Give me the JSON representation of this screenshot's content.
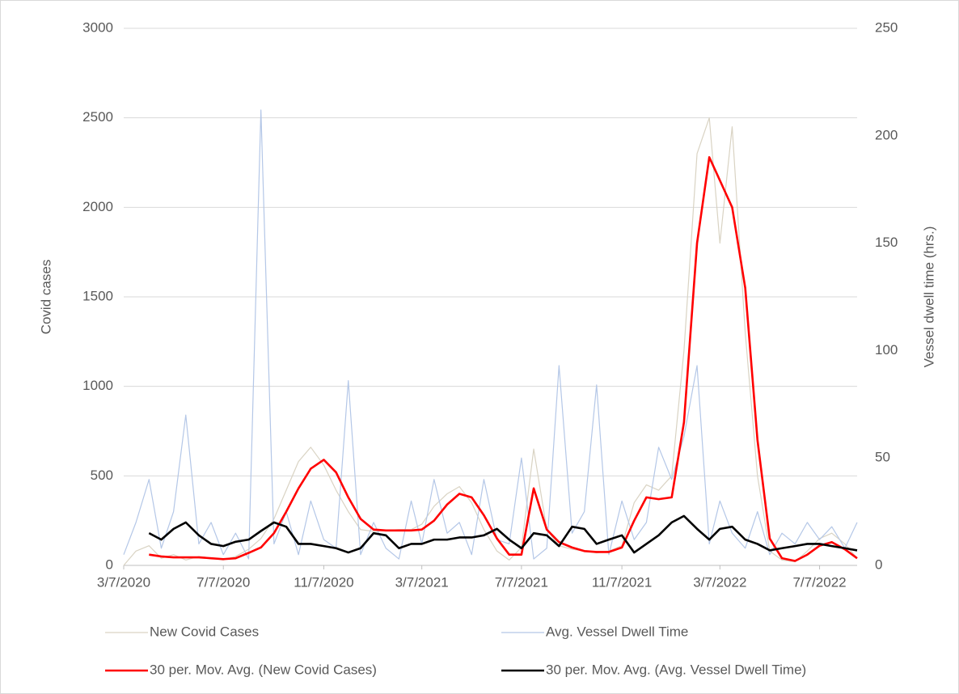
{
  "chart_data": {
    "type": "line",
    "ylabel": "Covid cases",
    "y2label": "Vessel dwell time (hrs.)",
    "x": [
      "2020-03-07",
      "2020-03-22",
      "2020-04-07",
      "2020-04-22",
      "2020-05-07",
      "2020-05-22",
      "2020-06-07",
      "2020-06-22",
      "2020-07-07",
      "2020-07-22",
      "2020-08-07",
      "2020-08-22",
      "2020-09-07",
      "2020-09-22",
      "2020-10-07",
      "2020-10-22",
      "2020-11-07",
      "2020-11-22",
      "2020-12-07",
      "2020-12-22",
      "2021-01-07",
      "2021-01-22",
      "2021-02-07",
      "2021-02-22",
      "2021-03-07",
      "2021-03-22",
      "2021-04-07",
      "2021-04-22",
      "2021-05-07",
      "2021-05-22",
      "2021-06-07",
      "2021-06-22",
      "2021-07-07",
      "2021-07-22",
      "2021-08-07",
      "2021-08-22",
      "2021-09-07",
      "2021-09-22",
      "2021-10-07",
      "2021-10-22",
      "2021-11-07",
      "2021-11-22",
      "2021-12-07",
      "2021-12-22",
      "2022-01-07",
      "2022-01-22",
      "2022-02-07",
      "2022-02-22",
      "2022-03-07",
      "2022-03-22",
      "2022-04-07",
      "2022-04-22",
      "2022-05-07",
      "2022-05-22",
      "2022-06-07",
      "2022-06-22",
      "2022-07-07",
      "2022-07-22",
      "2022-08-07",
      "2022-08-22"
    ],
    "xlim": [
      "2020-03-07",
      "2022-08-22"
    ],
    "xticks": [
      {
        "value": "2020-03-07",
        "label": "3/7/2020"
      },
      {
        "value": "2020-07-07",
        "label": "7/7/2020"
      },
      {
        "value": "2020-11-07",
        "label": "11/7/2020"
      },
      {
        "value": "2021-03-07",
        "label": "3/7/2021"
      },
      {
        "value": "2021-07-07",
        "label": "7/7/2021"
      },
      {
        "value": "2021-11-07",
        "label": "11/7/2021"
      },
      {
        "value": "2022-03-07",
        "label": "3/7/2022"
      },
      {
        "value": "2022-07-07",
        "label": "7/7/2022"
      }
    ],
    "ylim": [
      0,
      3000
    ],
    "yticks": [
      0,
      500,
      1000,
      1500,
      2000,
      2500,
      3000
    ],
    "y2lim": [
      0,
      250
    ],
    "y2ticks": [
      0,
      50,
      100,
      150,
      200,
      250
    ],
    "grid": true,
    "legend": "bottom",
    "series": [
      {
        "name": "New Covid Cases",
        "color": "#d9d3c3",
        "width": 1.2,
        "axis": "y",
        "values": [
          0,
          80,
          110,
          40,
          60,
          30,
          50,
          40,
          30,
          50,
          90,
          150,
          260,
          420,
          580,
          660,
          560,
          420,
          300,
          200,
          190,
          195,
          200,
          200,
          230,
          330,
          400,
          440,
          350,
          200,
          80,
          30,
          100,
          650,
          200,
          110,
          90,
          80,
          70,
          80,
          110,
          350,
          450,
          420,
          500,
          1200,
          2300,
          2500,
          1800,
          2450,
          1300,
          500,
          80,
          30,
          20,
          80,
          150,
          180,
          120,
          40
        ]
      },
      {
        "name": "Avg. Vessel Dwell Time",
        "color": "#b4c7e7",
        "width": 1.2,
        "axis": "y2",
        "values": [
          5,
          20,
          40,
          8,
          25,
          70,
          10,
          20,
          5,
          15,
          3,
          212,
          10,
          25,
          5,
          30,
          12,
          8,
          86,
          5,
          20,
          8,
          3,
          30,
          10,
          40,
          15,
          20,
          5,
          40,
          12,
          10,
          50,
          3,
          8,
          93,
          15,
          25,
          84,
          5,
          30,
          12,
          20,
          55,
          40,
          60,
          93,
          10,
          30,
          15,
          8,
          25,
          5,
          15,
          10,
          20,
          12,
          18,
          8,
          20
        ]
      },
      {
        "name": "30 per. Mov. Avg. (New Covid Cases)",
        "color": "#ff0000",
        "width": 2.6,
        "axis": "y",
        "values": [
          null,
          null,
          60,
          50,
          45,
          45,
          45,
          40,
          35,
          40,
          70,
          100,
          180,
          300,
          430,
          540,
          590,
          520,
          380,
          260,
          200,
          195,
          195,
          195,
          200,
          250,
          340,
          400,
          380,
          280,
          150,
          60,
          60,
          430,
          200,
          130,
          100,
          80,
          75,
          75,
          100,
          250,
          380,
          370,
          380,
          800,
          1800,
          2280,
          2150,
          2000,
          1550,
          700,
          150,
          40,
          25,
          60,
          110,
          130,
          90,
          40
        ]
      },
      {
        "name": "30 per. Mov. Avg. (Avg. Vessel Dwell Time)",
        "color": "#000000",
        "width": 2.6,
        "axis": "y2",
        "values": [
          null,
          null,
          15,
          12,
          17,
          20,
          14,
          10,
          9,
          11,
          12,
          16,
          20,
          18,
          10,
          10,
          9,
          8,
          6,
          8,
          15,
          14,
          8,
          10,
          10,
          12,
          12,
          13,
          13,
          14,
          17,
          12,
          8,
          15,
          14,
          9,
          18,
          17,
          10,
          12,
          14,
          6,
          10,
          14,
          20,
          23,
          17,
          12,
          17,
          18,
          12,
          10,
          7,
          8,
          9,
          10,
          10,
          9,
          8,
          7
        ]
      }
    ]
  }
}
